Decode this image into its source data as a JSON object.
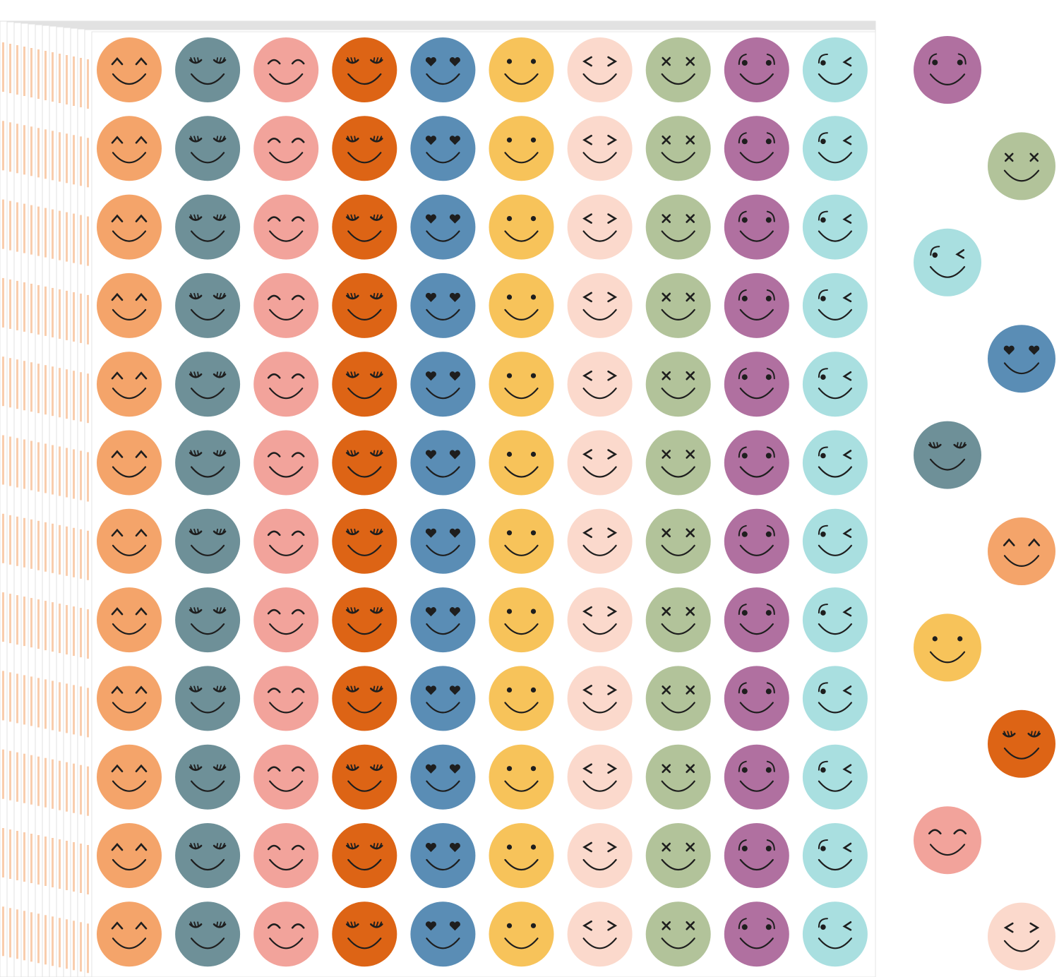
{
  "sheet": {
    "rows": 12,
    "colors": [
      "#f4a46a",
      "#6e9098",
      "#f2a39b",
      "#dd6415",
      "#5a8db5",
      "#f7c35a",
      "#fbd9cc",
      "#b2c39a",
      "#b070a0",
      "#a9dfe0"
    ]
  },
  "loose": {
    "colors": [
      "#b070a0",
      "#b2c39a",
      "#a9dfe0",
      "#5a8db5",
      "#6e9098",
      "#f4a46a",
      "#f7c35a",
      "#dd6415",
      "#f2a39b",
      "#fbd9cc"
    ]
  }
}
